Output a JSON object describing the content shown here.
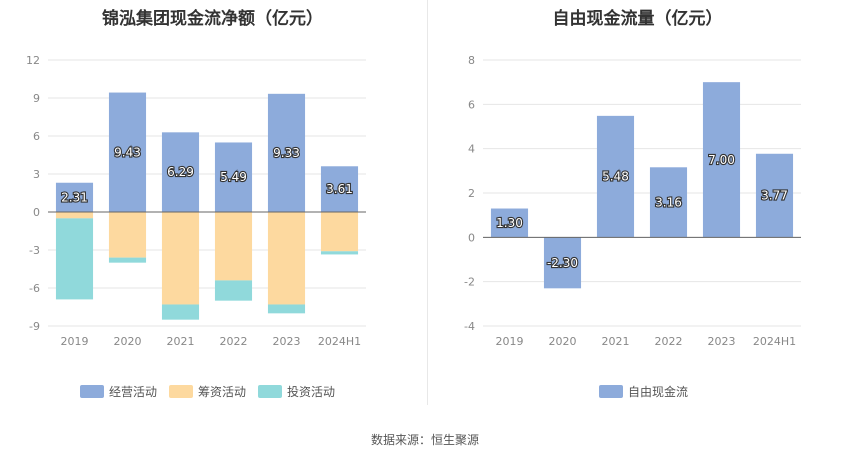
{
  "chart_data": [
    {
      "type": "bar",
      "stacked": true,
      "title": "锦泓集团现金流净额（亿元）",
      "categories": [
        "2019",
        "2020",
        "2021",
        "2022",
        "2023",
        "2024H1"
      ],
      "ylim": [
        -9,
        12
      ],
      "yticks": [
        -9,
        -6,
        -3,
        0,
        3,
        6,
        9,
        12
      ],
      "grid": true,
      "legend_position": "bottom",
      "series": [
        {
          "name": "经营活动",
          "color": "#8dabdb",
          "values": [
            2.31,
            9.43,
            6.29,
            5.49,
            9.33,
            3.61
          ],
          "labels": [
            "2.31",
            "9.43",
            "6.29",
            "5.49",
            "9.33",
            "3.61"
          ]
        },
        {
          "name": "筹资活动",
          "color": "#fdd99f",
          "values": [
            -0.5,
            -3.6,
            -7.3,
            -5.4,
            -7.3,
            -3.1
          ]
        },
        {
          "name": "投资活动",
          "color": "#90d9db",
          "values": [
            -6.4,
            -0.4,
            -1.2,
            -1.6,
            -0.7,
            -0.25
          ]
        }
      ]
    },
    {
      "type": "bar",
      "title": "自由现金流量（亿元）",
      "categories": [
        "2019",
        "2020",
        "2021",
        "2022",
        "2023",
        "2024H1"
      ],
      "ylim": [
        -4,
        8
      ],
      "yticks": [
        -4,
        -2,
        0,
        2,
        4,
        6,
        8
      ],
      "grid": true,
      "legend_position": "bottom",
      "series": [
        {
          "name": "自由现金流",
          "color": "#8dabdb",
          "values": [
            1.3,
            -2.3,
            5.48,
            3.16,
            7.0,
            3.77
          ],
          "labels": [
            "1.30",
            "-2.30",
            "5.48",
            "3.16",
            "7.00",
            "3.77"
          ]
        }
      ]
    }
  ],
  "source": "数据来源：恒生聚源"
}
